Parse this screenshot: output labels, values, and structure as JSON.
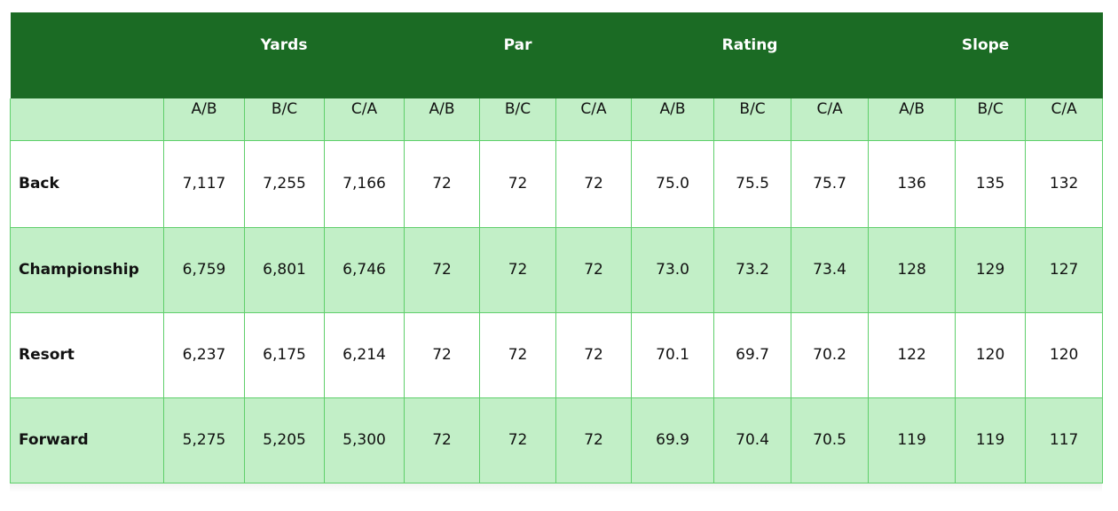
{
  "table": {
    "groups": [
      {
        "label": ""
      },
      {
        "label": "Yards"
      },
      {
        "label": "Par"
      },
      {
        "label": "Rating"
      },
      {
        "label": "Slope"
      }
    ],
    "subheaders": [
      "",
      "A/B",
      "B/C",
      "C/A",
      "A/B",
      "B/C",
      "C/A",
      "A/B",
      "B/C",
      "C/A",
      "A/B",
      "B/C",
      "C/A"
    ],
    "rows": [
      {
        "label": "Back",
        "values": [
          "7,117",
          "7,255",
          "7,166",
          "72",
          "72",
          "72",
          "75.0",
          "75.5",
          "75.7",
          "136",
          "135",
          "132"
        ]
      },
      {
        "label": "Championship",
        "values": [
          "6,759",
          "6,801",
          "6,746",
          "72",
          "72",
          "72",
          "73.0",
          "73.2",
          "73.4",
          "128",
          "129",
          "127"
        ]
      },
      {
        "label": "Resort",
        "values": [
          "6,237",
          "6,175",
          "6,214",
          "72",
          "72",
          "72",
          "70.1",
          "69.7",
          "70.2",
          "122",
          "120",
          "120"
        ]
      },
      {
        "label": "Forward",
        "values": [
          "5,275",
          "5,205",
          "5,300",
          "72",
          "72",
          "72",
          "69.9",
          "70.4",
          "70.5",
          "119",
          "119",
          "117"
        ]
      }
    ]
  },
  "colors": {
    "header_green": "#1b6b24",
    "light_green": "#c2efc7",
    "border_green": "#5fcf6b",
    "white": "#ffffff"
  }
}
